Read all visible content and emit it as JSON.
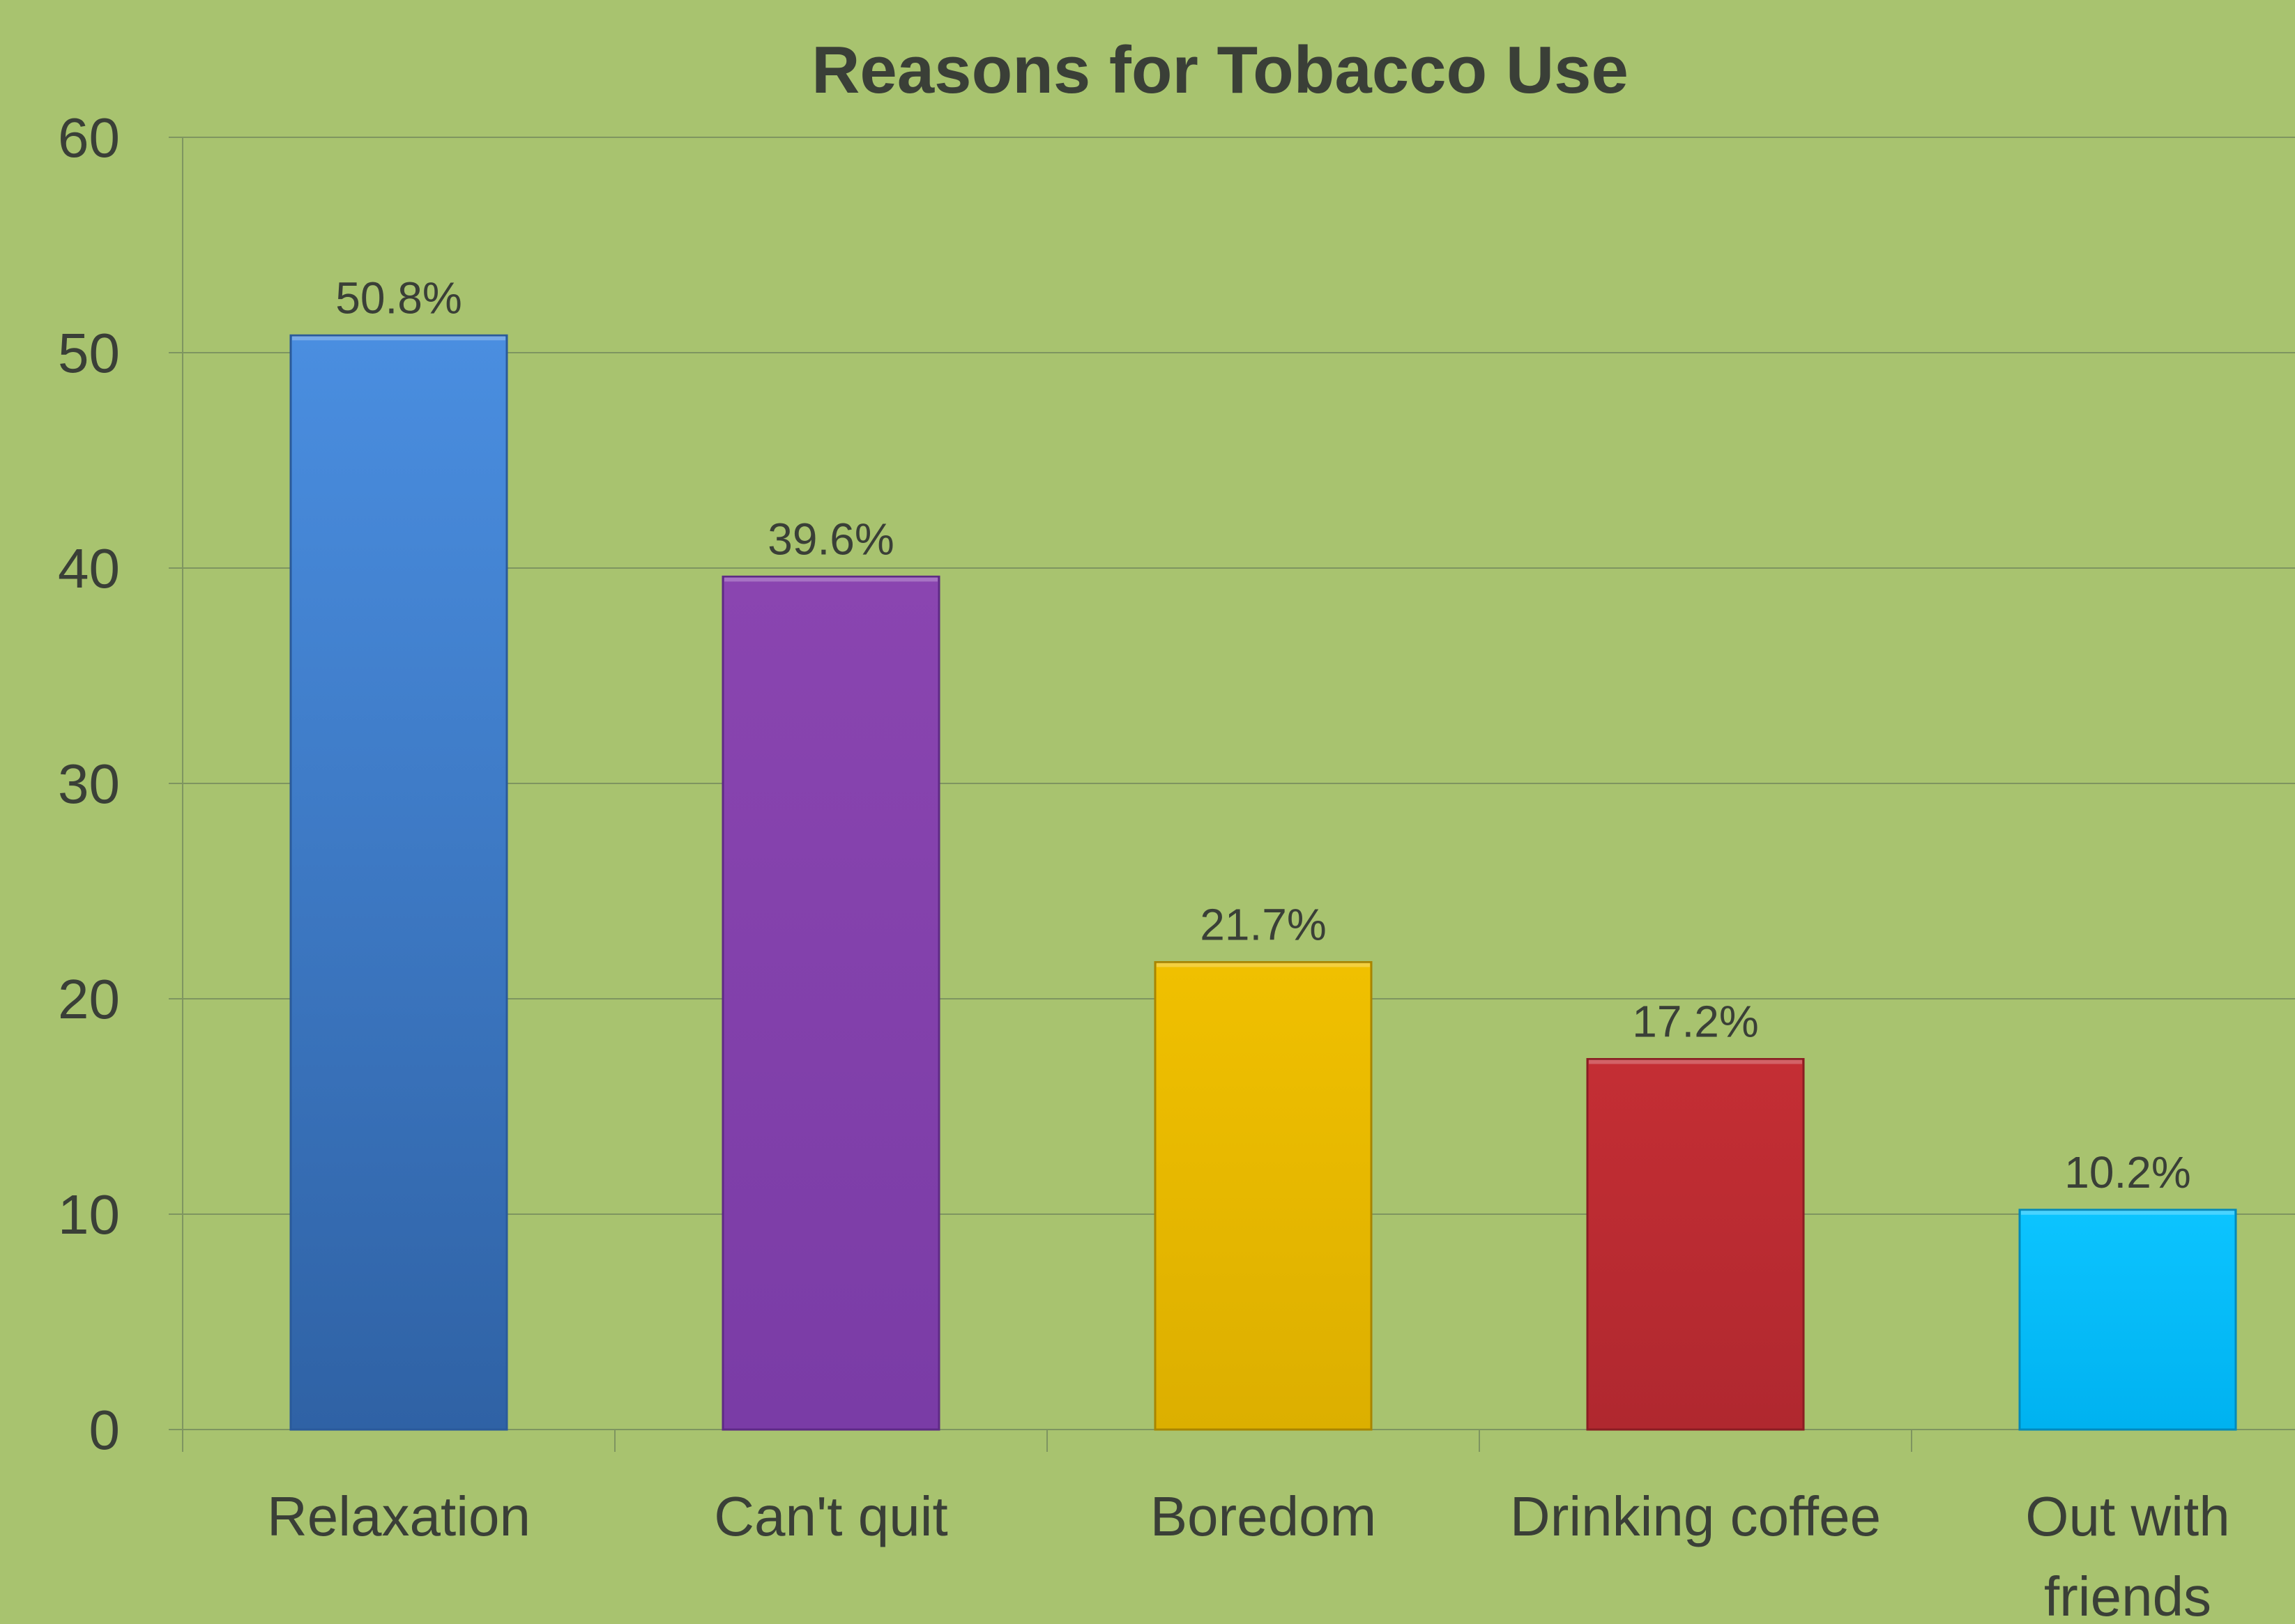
{
  "chart_data": {
    "type": "bar",
    "title": "Reasons for Tobacco Use",
    "xlabel": "",
    "ylabel": "",
    "categories": [
      "Relaxation",
      "Can't quit",
      "Boredom",
      "Drinking coffee",
      "Out with friends"
    ],
    "values": [
      50.8,
      39.6,
      21.7,
      17.2,
      10.2
    ],
    "data_labels": [
      "50.8%",
      "39.6%",
      "21.7%",
      "17.2%",
      "10.2%"
    ],
    "ylim": [
      0,
      60
    ],
    "yticks": [
      0,
      10,
      20,
      30,
      40,
      50,
      60
    ],
    "ytick_labels": [
      "0",
      "10",
      "20",
      "30",
      "40",
      "50",
      "60"
    ],
    "grid": true,
    "legend": "none",
    "bar_colors": [
      {
        "top": "#4a8ee0",
        "bottom": "#2f62a5",
        "edge": "#2a5a9a"
      },
      {
        "top": "#8a45b0",
        "bottom": "#7a3ca6",
        "edge": "#5e2a85"
      },
      {
        "top": "#f0c000",
        "bottom": "#dcaf00",
        "edge": "#a88500"
      },
      {
        "top": "#c42e34",
        "bottom": "#b0282f",
        "edge": "#8a1d22"
      },
      {
        "top": "#0cc4ff",
        "bottom": "#00b2f0",
        "edge": "#0089bb"
      }
    ],
    "background_color": "#a8c36f",
    "gridline_color": "#7e9560",
    "text_color": "#3a3f37"
  }
}
